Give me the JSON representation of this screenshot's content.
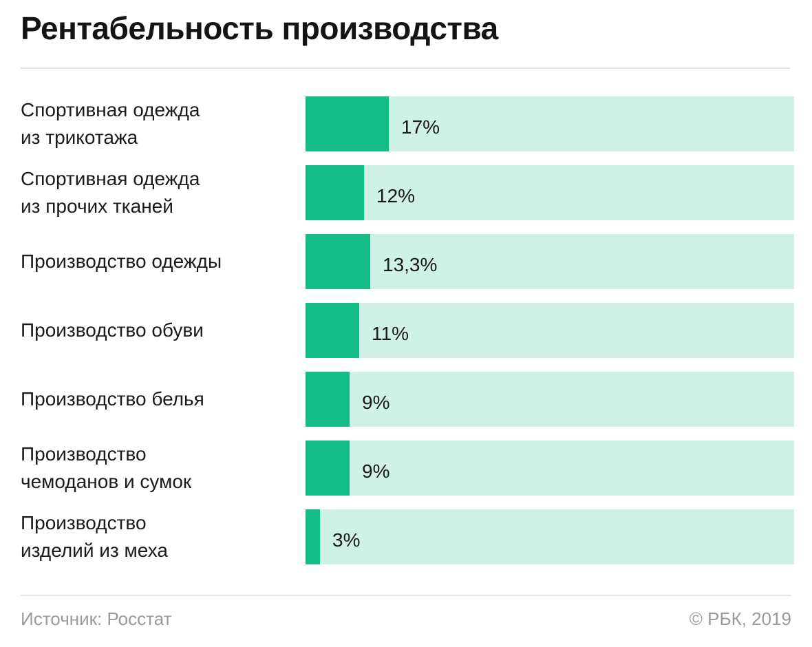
{
  "title": "Рентабельность производства",
  "footer": {
    "source": "Источник: Росстат",
    "copyright": "© РБК, 2019"
  },
  "colors": {
    "bar": "#14bb87",
    "track": "#d0f1e5"
  },
  "chart_data": {
    "type": "bar",
    "orientation": "horizontal",
    "title": "Рентабельность производства",
    "categories": [
      [
        "Спортивная одежда",
        "из трикотажа"
      ],
      [
        "Спортивная одежда",
        "из прочих тканей"
      ],
      [
        "Производство одежды"
      ],
      [
        "Производство обуви"
      ],
      [
        "Производство белья"
      ],
      [
        "Производство",
        "чемоданов и сумок"
      ],
      [
        "Производство",
        "изделий из меха"
      ]
    ],
    "values": [
      17,
      12,
      13.3,
      11,
      9,
      9,
      3
    ],
    "value_labels": [
      "17%",
      "12%",
      "13,3%",
      "11%",
      "9%",
      "9%",
      "3%"
    ],
    "unit": "%",
    "xlim": [
      0,
      100
    ],
    "grid": false,
    "legend": "none"
  }
}
